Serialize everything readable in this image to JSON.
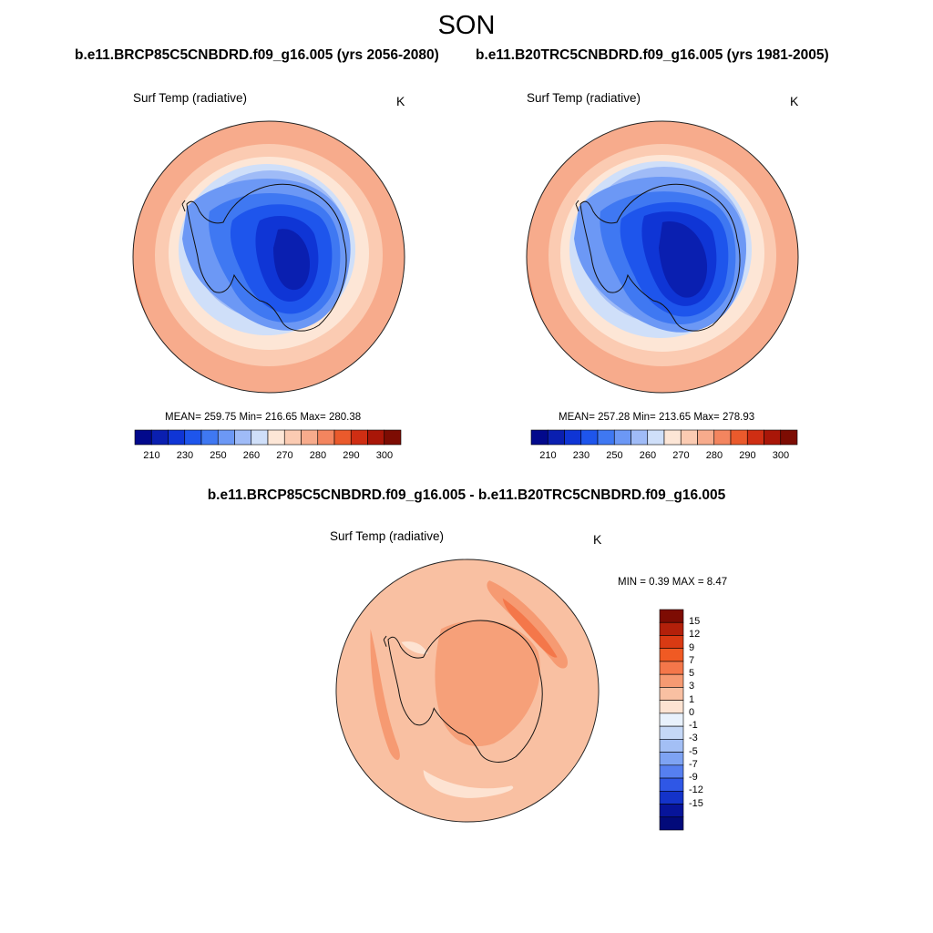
{
  "figure": {
    "season": "SON",
    "case_titles": [
      "b.e11.BRCP85C5CNBDRD.f09_g16.005 (yrs 2056-2080)",
      "b.e11.B20TRC5CNBDRD.f09_g16.005 (yrs 1981-2005)"
    ],
    "diff_title": "b.e11.BRCP85C5CNBDRD.f09_g16.005 - b.e11.B20TRC5CNBDRD.f09_g16.005"
  },
  "panels": [
    {
      "variable": "Surf Temp (radiative)",
      "units": "K",
      "stats": "MEAN= 259.75  Min= 216.65  Max= 280.38",
      "colorbar": {
        "colors": [
          "#02098c",
          "#0a1fb0",
          "#0f35d5",
          "#1e55ec",
          "#3f78f2",
          "#6c98f5",
          "#9fbbf7",
          "#cfdff9",
          "#fde6d6",
          "#fbcbb2",
          "#f7ab8c",
          "#f3855f",
          "#ea5a2c",
          "#cf2e13",
          "#a91608",
          "#7d0c03"
        ],
        "labels": [
          "210",
          "230",
          "250",
          "260",
          "270",
          "280",
          "290",
          "300"
        ]
      }
    },
    {
      "variable": "Surf Temp (radiative)",
      "units": "K",
      "stats": "MEAN= 257.28  Min= 213.65  Max= 278.93",
      "colorbar": {
        "colors": [
          "#02098c",
          "#0a1fb0",
          "#0f35d5",
          "#1e55ec",
          "#3f78f2",
          "#6c98f5",
          "#9fbbf7",
          "#cfdff9",
          "#fde6d6",
          "#fbcbb2",
          "#f7ab8c",
          "#f3855f",
          "#ea5a2c",
          "#cf2e13",
          "#a91608",
          "#7d0c03"
        ],
        "labels": [
          "210",
          "230",
          "250",
          "260",
          "270",
          "280",
          "290",
          "300"
        ]
      }
    },
    {
      "variable": "Surf Temp (radiative)",
      "units": "K",
      "stats": "MIN =   0.39 MAX =   8.47",
      "colorbar": {
        "colors": [
          "#7d0c03",
          "#b3200a",
          "#d93a13",
          "#f05a23",
          "#f4774a",
          "#f69a72",
          "#f9c0a2",
          "#fde3d2",
          "#e8f1fc",
          "#c5d8f7",
          "#a3bff5",
          "#7ea3f3",
          "#567ff0",
          "#2f57e6",
          "#1433c9",
          "#07149a",
          "#020a7a"
        ],
        "labels": [
          "15",
          "12",
          "9",
          "7",
          "5",
          "3",
          "1",
          "0",
          "-1",
          "-3",
          "-5",
          "-7",
          "-9",
          "-12",
          "-15"
        ]
      }
    }
  ]
}
